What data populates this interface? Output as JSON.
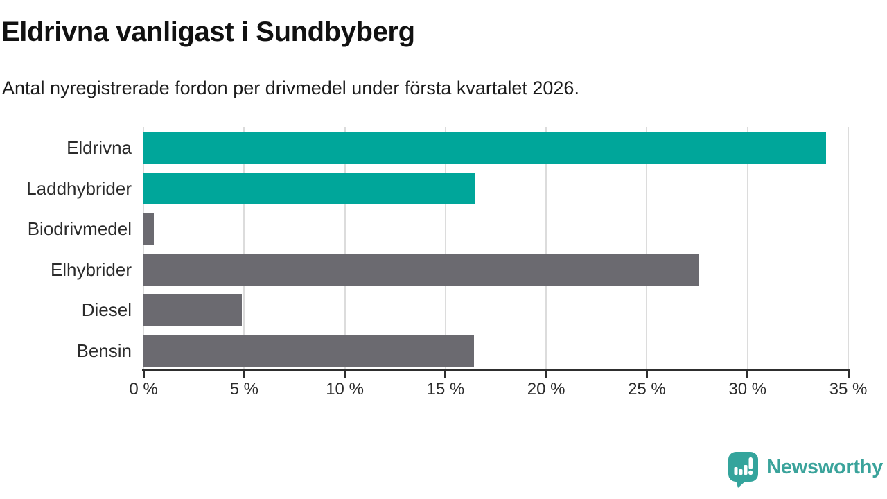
{
  "header": {
    "title": "Eldrivna vanligast i Sundbyberg",
    "subtitle": "Antal nyregistrerade fordon per drivmedel under första kvartalet 2026."
  },
  "chart_data": {
    "type": "bar",
    "orientation": "horizontal",
    "categories": [
      "Eldrivna",
      "Laddhybrider",
      "Biodrivmedel",
      "Elhybrider",
      "Diesel",
      "Bensin"
    ],
    "values": [
      33.9,
      16.5,
      0.5,
      27.6,
      4.9,
      16.4
    ],
    "bar_colors": [
      "#00a69a",
      "#00a69a",
      "#6b6a70",
      "#6b6a70",
      "#6b6a70",
      "#6b6a70"
    ],
    "highlight_color": "#00a69a",
    "default_color": "#6b6a70",
    "xlim": [
      0,
      35
    ],
    "x_ticks": [
      0,
      5,
      10,
      15,
      20,
      25,
      30,
      35
    ],
    "x_tick_labels": [
      "0 %",
      "5 %",
      "10 %",
      "15 %",
      "20 %",
      "25 %",
      "30 %",
      "35 %"
    ],
    "grid": true,
    "gridline_color": "#dcdcdc",
    "axis_color": "#2e2e2e",
    "title": "Eldrivna vanligast i Sundbyberg",
    "xlabel": "",
    "ylabel": "",
    "legend": false
  },
  "branding": {
    "name": "Newsworthy",
    "logo_color": "#3aa39b",
    "bubble_color": "#34a49c",
    "icon": "speech-bubble-bar-chart-icon"
  }
}
